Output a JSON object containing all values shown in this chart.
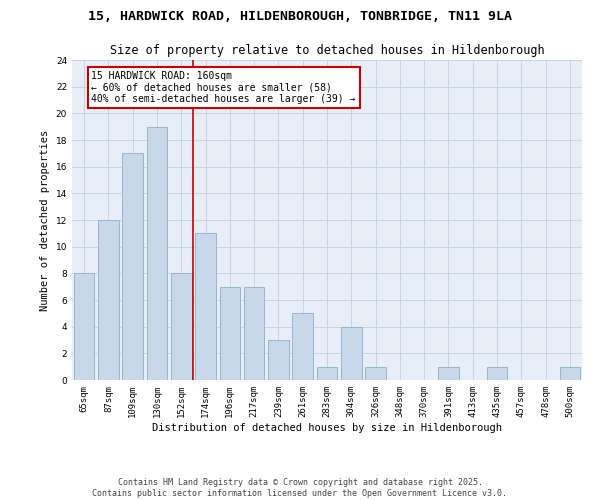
{
  "title": "15, HARDWICK ROAD, HILDENBOROUGH, TONBRIDGE, TN11 9LA",
  "subtitle": "Size of property relative to detached houses in Hildenborough",
  "xlabel": "Distribution of detached houses by size in Hildenborough",
  "ylabel": "Number of detached properties",
  "categories": [
    "65sqm",
    "87sqm",
    "109sqm",
    "130sqm",
    "152sqm",
    "174sqm",
    "196sqm",
    "217sqm",
    "239sqm",
    "261sqm",
    "283sqm",
    "304sqm",
    "326sqm",
    "348sqm",
    "370sqm",
    "391sqm",
    "413sqm",
    "435sqm",
    "457sqm",
    "478sqm",
    "500sqm"
  ],
  "values": [
    8,
    12,
    17,
    19,
    8,
    11,
    7,
    7,
    3,
    5,
    1,
    4,
    1,
    0,
    0,
    1,
    0,
    1,
    0,
    0,
    1
  ],
  "bar_color": "#c8d8ea",
  "bar_edge_color": "#8aafc8",
  "grid_color": "#c8d4e4",
  "background_color": "#e8eef8",
  "annotation_box_color": "#cc0000",
  "vline_color": "#cc0000",
  "vline_position": 4.5,
  "annotation_line1": "15 HARDWICK ROAD: 160sqm",
  "annotation_line2": "← 60% of detached houses are smaller (58)",
  "annotation_line3": "40% of semi-detached houses are larger (39) →",
  "ylim": [
    0,
    24
  ],
  "yticks": [
    0,
    2,
    4,
    6,
    8,
    10,
    12,
    14,
    16,
    18,
    20,
    22,
    24
  ],
  "footer_line1": "Contains HM Land Registry data © Crown copyright and database right 2025.",
  "footer_line2": "Contains public sector information licensed under the Open Government Licence v3.0.",
  "title_fontsize": 9.5,
  "subtitle_fontsize": 8.5,
  "axis_label_fontsize": 7.5,
  "tick_fontsize": 6.5,
  "annotation_fontsize": 7,
  "footer_fontsize": 6
}
